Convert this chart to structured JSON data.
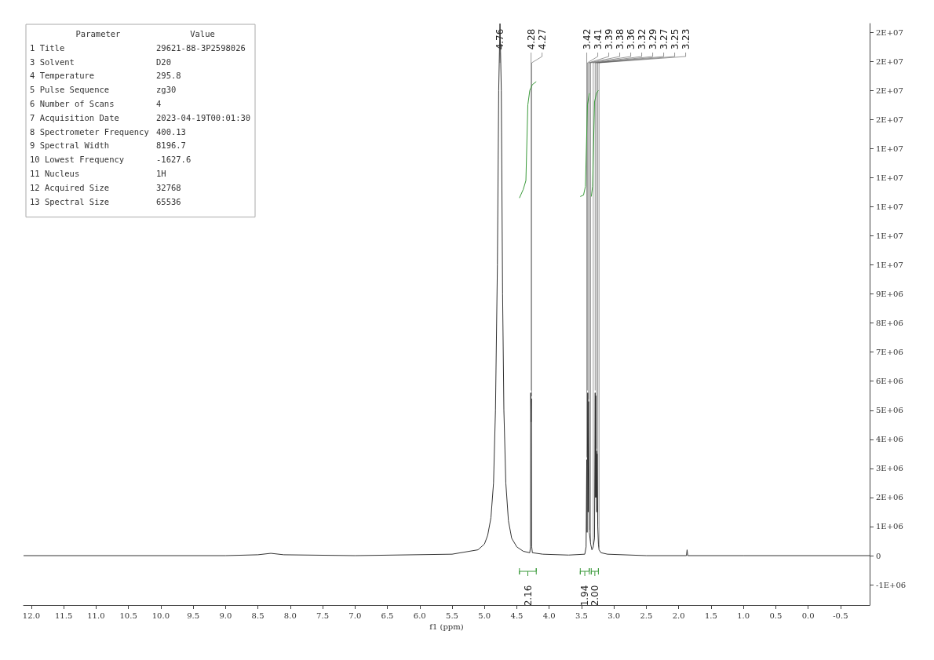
{
  "chart_data": {
    "type": "line",
    "xlabel": "f1 (ppm)",
    "xlim": [
      12.12,
      -0.95
    ],
    "xticks": [
      {
        "value": 12,
        "label": "12.0"
      },
      11.5,
      {
        "value": 11,
        "label": "11.0"
      },
      10.5,
      {
        "value": 10,
        "label": "10.0"
      },
      9.5,
      {
        "value": 9,
        "label": "9.0"
      },
      8.5,
      {
        "value": 8,
        "label": "8.0"
      },
      7.5,
      {
        "value": 7,
        "label": "7.0"
      },
      6.5,
      {
        "value": 6,
        "label": "6.0"
      },
      5.5,
      {
        "value": 5,
        "label": "5.0"
      },
      4.5,
      {
        "value": 4,
        "label": "4.0"
      },
      3.5,
      {
        "value": 3,
        "label": "3.0"
      },
      2.5,
      {
        "value": 2,
        "label": "2.0"
      },
      1.5,
      {
        "value": 1,
        "label": "1.0"
      },
      0.5,
      {
        "value": 0,
        "label": "0.0"
      },
      -0.5
    ],
    "ylim": [
      -1700000,
      18300000
    ],
    "yticks": [
      {
        "value": -1000000,
        "label": "-1E+06"
      },
      0,
      {
        "value": 1000000,
        "label": "1E+06"
      },
      {
        "value": 2000000,
        "label": "2E+06"
      },
      {
        "value": 3000000,
        "label": "3E+06"
      },
      {
        "value": 4000000,
        "label": "4E+06"
      },
      {
        "value": 5000000,
        "label": "5E+06"
      },
      {
        "value": 6000000,
        "label": "6E+06"
      },
      {
        "value": 7000000,
        "label": "7E+06"
      },
      {
        "value": 8000000,
        "label": "8E+06"
      },
      {
        "value": 9000000,
        "label": "9E+06"
      },
      {
        "value": 10000000,
        "label": "1E+07"
      },
      {
        "value": 11000000,
        "label": "1E+07"
      },
      {
        "value": 12000000,
        "label": "1E+07"
      },
      {
        "value": 13000000,
        "label": "1E+07"
      },
      {
        "value": 14000000,
        "label": "1E+07"
      },
      {
        "value": 15000000,
        "label": "2E+07"
      },
      {
        "value": 16000000,
        "label": "2E+07"
      },
      {
        "value": 17000000,
        "label": "2E+07"
      },
      {
        "value": 18000000,
        "label": "2E+07"
      }
    ],
    "tick_labels": true,
    "grid": false,
    "marker": "none",
    "line_style": "solid",
    "series": [
      {
        "color": "#333333",
        "x": [
          12.12,
          9,
          8.5,
          8.3,
          8.1,
          7,
          5.5,
          5.1,
          5.0,
          4.95,
          4.9,
          4.86,
          4.83,
          4.8,
          4.78,
          4.76,
          4.74,
          4.72,
          4.7,
          4.67,
          4.63,
          4.58,
          4.5,
          4.4,
          4.3,
          4.29,
          4.285,
          4.28,
          4.275,
          4.27,
          4.26,
          4.1,
          3.7,
          3.45,
          3.43,
          3.42,
          3.415,
          3.405,
          3.4,
          3.39,
          3.38,
          3.36,
          3.34,
          3.32,
          3.3,
          3.29,
          3.285,
          3.28,
          3.275,
          3.27,
          3.265,
          3.26,
          3.25,
          3.24,
          3.23,
          3.2,
          3.1,
          2.5,
          1.88,
          1.87,
          1.86,
          1.0,
          -0.95
        ],
        "values": [
          0,
          0,
          30000,
          80000,
          30000,
          0,
          50000,
          200000,
          400000,
          700000,
          1300000,
          2500000,
          5000000,
          10000000,
          16000000,
          18300000,
          16000000,
          9000000,
          5000000,
          2500000,
          1200000,
          600000,
          300000,
          150000,
          100000,
          300000,
          5600000,
          4600000,
          5400000,
          300000,
          100000,
          50000,
          20000,
          50000,
          300000,
          3300000,
          800000,
          5600000,
          1500000,
          5300000,
          800000,
          400000,
          200000,
          300000,
          600000,
          5600000,
          2000000,
          5500000,
          2000000,
          3600000,
          1500000,
          3500000,
          1000000,
          400000,
          200000,
          100000,
          50000,
          0,
          0,
          200000,
          0,
          0,
          0
        ]
      },
      {
        "color": "#3a9a3a",
        "x": [
          4.46,
          4.4,
          4.36,
          4.33,
          4.3,
          4.26,
          4.2
        ],
        "values": [
          12300000,
          12600000,
          12900000,
          15500000,
          16000000,
          16200000,
          16300000
        ]
      },
      {
        "color": "#3a9a3a",
        "x": [
          3.52,
          3.47,
          3.44,
          3.41,
          3.38
        ],
        "values": [
          12350000,
          12400000,
          12700000,
          15500000,
          15900000
        ]
      },
      {
        "color": "#3a9a3a",
        "x": [
          3.35,
          3.33,
          3.3,
          3.27,
          3.24
        ],
        "values": [
          12350000,
          12700000,
          15600000,
          15900000,
          16000000
        ]
      }
    ],
    "annotations": [
      "Parameter",
      "Value",
      "1 Title",
      "29621-88-3P2598026",
      "3 Solvent",
      "D20",
      "4 Temperature",
      "295.8",
      "5 Pulse Sequence",
      "zg30",
      "6 Number of Scans",
      "4",
      "7 Acquisition Date",
      "2023-04-19T00:01:30",
      "8 Spectrometer Frequency",
      "400.13",
      "9 Spectral Width",
      "8196.7",
      "10 Lowest Frequency",
      "-1627.6",
      "11 Nucleus",
      "1H",
      "12 Acquired Size",
      "32768",
      "13 Spectral Size",
      "65536",
      {
        "text": "4.76",
        "x": 4.76,
        "y": 18300000
      },
      {
        "text": "4.28",
        "x": 4.28,
        "y": 5600000
      },
      {
        "text": "4.27",
        "x": 4.27,
        "y": 5400000
      },
      {
        "text": "3.42",
        "x": 3.42,
        "y": 3300000
      },
      {
        "text": "3.41",
        "x": 3.41,
        "y": 5600000
      },
      {
        "text": "3.39",
        "x": 3.39,
        "y": 5300000
      },
      {
        "text": "3.38",
        "x": 3.38,
        "y": 800000
      },
      {
        "text": "3.36",
        "x": 3.36,
        "y": 400000
      },
      {
        "text": "3.32",
        "x": 3.32,
        "y": 300000
      },
      {
        "text": "3.29",
        "x": 3.29,
        "y": 5600000
      },
      {
        "text": "3.27",
        "x": 3.27,
        "y": 3600000
      },
      {
        "text": "3.25",
        "x": 3.25,
        "y": 1000000
      },
      {
        "text": "3.23",
        "x": 3.23,
        "y": 200000
      },
      "2.16",
      "1.94",
      "2.00"
    ]
  }
}
